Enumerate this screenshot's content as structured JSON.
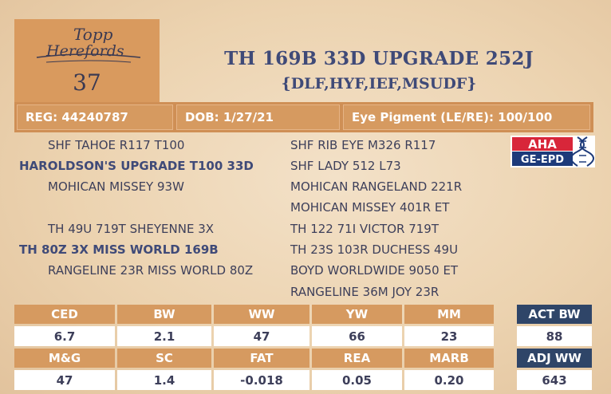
{
  "logo": {
    "line1": "Topp",
    "line2": "Herefords"
  },
  "lot_number": "37",
  "title": "TH 169B 33D UPGRADE 252J",
  "subtitle": "{DLF,HYF,IEF,MSUDF}",
  "info": {
    "reg": "REG: 44240787",
    "dob": "DOB: 1/27/21",
    "eye": "Eye Pigment (LE/RE): 100/100"
  },
  "pedigree": {
    "left": [
      "SHF TAHOE R117 T100",
      "HAROLDSON'S UPGRADE T100 33D",
      "MOHICAN MISSEY 93W",
      "TH 49U 719T SHEYENNE 3X",
      "TH 80Z 3X MISS WORLD 169B",
      "RANGELINE 23R MISS WORLD 80Z"
    ],
    "right": [
      "SHF RIB EYE M326 R117",
      "SHF LADY 512 L73",
      "MOHICAN RANGELAND 221R",
      "MOHICAN MISSEY 401R ET",
      "TH 122 71I VICTOR 719T",
      "TH 23S 103R DUCHESS 49U",
      "BOYD WORLDWIDE 9050 ET",
      "RANGELINE 36M JOY 23R"
    ]
  },
  "badge": {
    "top": "AHA",
    "bottom": "GE-EPD",
    "colors": {
      "red": "#d8263a",
      "navy": "#1d3a7a"
    }
  },
  "epd": {
    "row1_headers": [
      "CED",
      "BW",
      "WW",
      "YW",
      "MM"
    ],
    "row1_values": [
      "6.7",
      "2.1",
      "47",
      "66",
      "23"
    ],
    "row2_headers": [
      "M&G",
      "SC",
      "FAT",
      "REA",
      "MARB"
    ],
    "row2_values": [
      "47",
      "1.4",
      "-0.018",
      "0.05",
      "0.20"
    ]
  },
  "actuals": {
    "act_bw_label": "ACT BW",
    "act_bw_value": "88",
    "adj_ww_label": "ADJ WW",
    "adj_ww_value": "643"
  },
  "colors": {
    "accent": "#d69a60",
    "navy": "#2f4568",
    "title": "#3f4a78"
  }
}
